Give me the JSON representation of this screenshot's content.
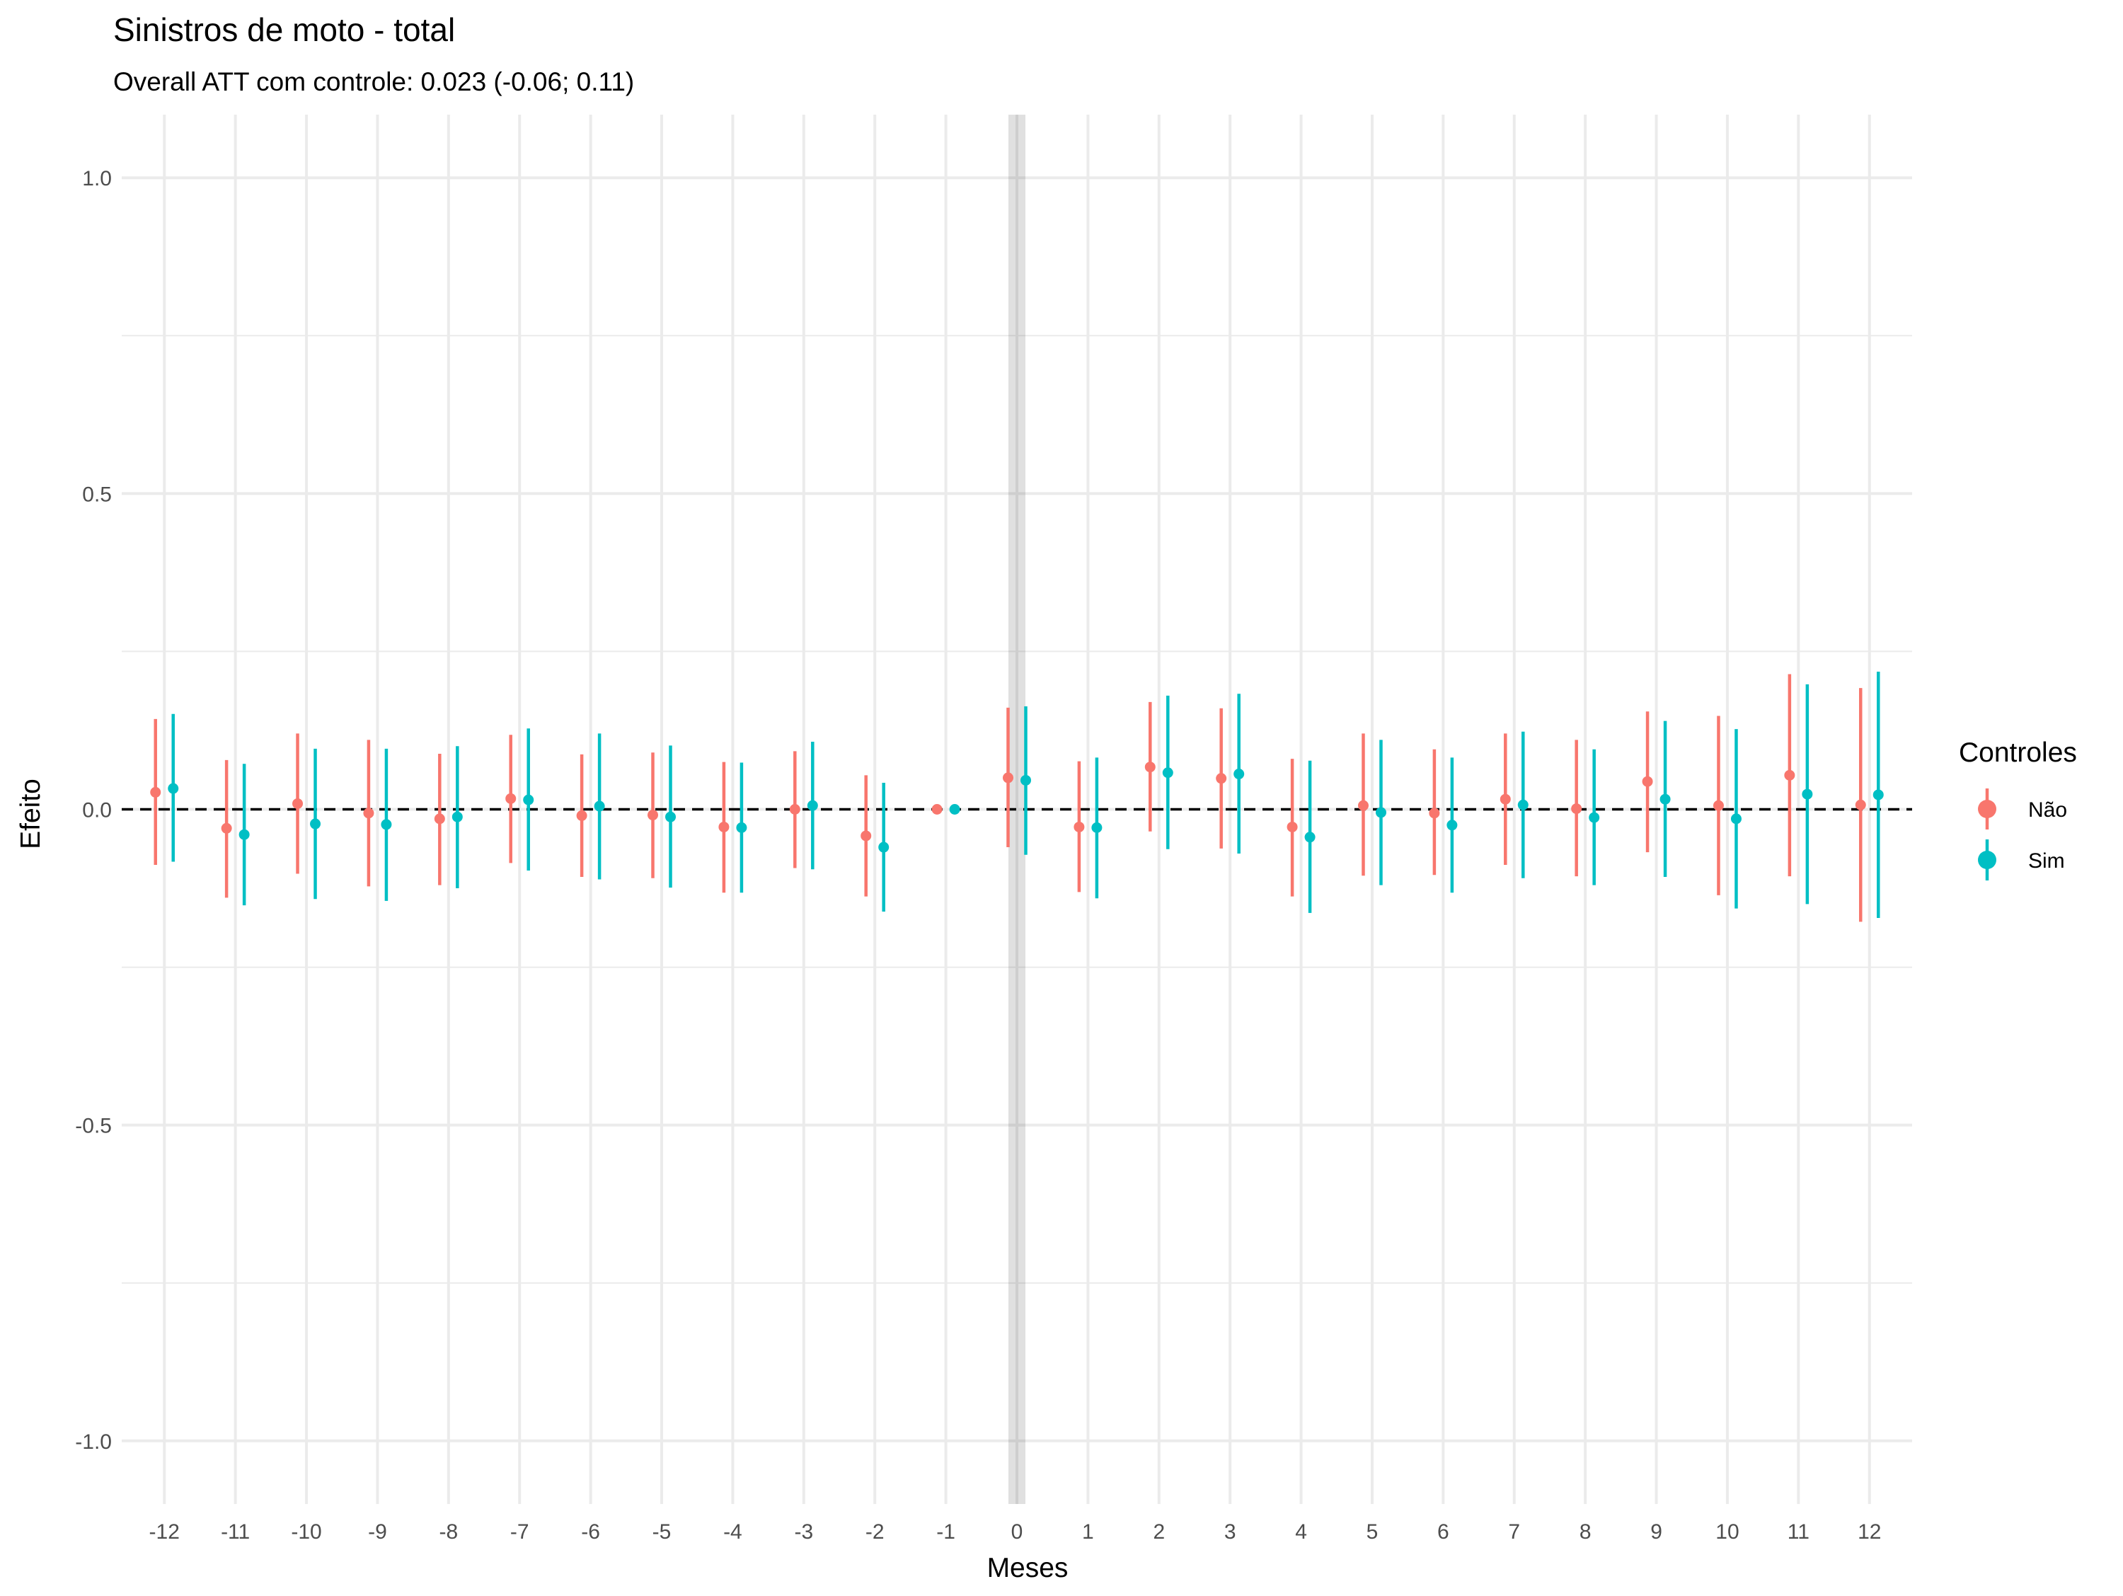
{
  "chart_data": {
    "type": "scatter",
    "title": "Sinistros de moto - total",
    "subtitle": "Overall ATT com controle: 0.023 (-0.06; 0.11)",
    "xlabel": "Meses",
    "ylabel": "Efeito",
    "ylim": [
      -1.1,
      1.1
    ],
    "y_ticks": [
      -1.0,
      -0.5,
      0.0,
      0.5,
      1.0
    ],
    "y_tick_labels": [
      "-1.0",
      "-0.5",
      "0.0",
      "0.5",
      "1.0"
    ],
    "x_ticks": [
      -12,
      -11,
      -10,
      -9,
      -8,
      -7,
      -6,
      -5,
      -4,
      -3,
      -2,
      -1,
      0,
      1,
      2,
      3,
      4,
      5,
      6,
      7,
      8,
      9,
      10,
      11,
      12
    ],
    "x_tick_labels": [
      "-12",
      "-11",
      "-10",
      "-9",
      "-8",
      "-7",
      "-6",
      "-5",
      "-4",
      "-3",
      "-2",
      "-1",
      "0",
      "1",
      "2",
      "3",
      "4",
      "5",
      "6",
      "7",
      "8",
      "9",
      "10",
      "11",
      "12"
    ],
    "reference_line_y": 0,
    "highlight_x": 0,
    "grid": true,
    "legend": {
      "title": "Controles",
      "position": "right",
      "entries": [
        {
          "name": "Não",
          "color": "#F8766D"
        },
        {
          "name": "Sim",
          "color": "#00BFC4"
        }
      ]
    },
    "series": [
      {
        "name": "Não",
        "color": "#F8766D",
        "points": [
          {
            "x": -12,
            "y": 0.027,
            "lo": -0.088,
            "hi": 0.143
          },
          {
            "x": -11,
            "y": -0.03,
            "lo": -0.14,
            "hi": 0.078
          },
          {
            "x": -10,
            "y": 0.009,
            "lo": -0.102,
            "hi": 0.12
          },
          {
            "x": -9,
            "y": -0.006,
            "lo": -0.122,
            "hi": 0.11
          },
          {
            "x": -8,
            "y": -0.015,
            "lo": -0.12,
            "hi": 0.088
          },
          {
            "x": -7,
            "y": 0.017,
            "lo": -0.085,
            "hi": 0.118
          },
          {
            "x": -6,
            "y": -0.01,
            "lo": -0.107,
            "hi": 0.087
          },
          {
            "x": -5,
            "y": -0.009,
            "lo": -0.109,
            "hi": 0.09
          },
          {
            "x": -4,
            "y": -0.028,
            "lo": -0.132,
            "hi": 0.075
          },
          {
            "x": -3,
            "y": 0.0,
            "lo": -0.093,
            "hi": 0.092
          },
          {
            "x": -2,
            "y": -0.042,
            "lo": -0.138,
            "hi": 0.054
          },
          {
            "x": -1,
            "y": 0.0,
            "lo": 0.0,
            "hi": 0.0
          },
          {
            "x": 0,
            "y": 0.05,
            "lo": -0.06,
            "hi": 0.161
          },
          {
            "x": 1,
            "y": -0.028,
            "lo": -0.131,
            "hi": 0.076
          },
          {
            "x": 2,
            "y": 0.067,
            "lo": -0.035,
            "hi": 0.17
          },
          {
            "x": 3,
            "y": 0.049,
            "lo": -0.062,
            "hi": 0.16
          },
          {
            "x": 4,
            "y": -0.028,
            "lo": -0.138,
            "hi": 0.08
          },
          {
            "x": 5,
            "y": 0.006,
            "lo": -0.105,
            "hi": 0.12
          },
          {
            "x": 6,
            "y": -0.006,
            "lo": -0.104,
            "hi": 0.095
          },
          {
            "x": 7,
            "y": 0.016,
            "lo": -0.088,
            "hi": 0.12
          },
          {
            "x": 8,
            "y": 0.001,
            "lo": -0.106,
            "hi": 0.11
          },
          {
            "x": 9,
            "y": 0.044,
            "lo": -0.068,
            "hi": 0.155
          },
          {
            "x": 10,
            "y": 0.006,
            "lo": -0.136,
            "hi": 0.148
          },
          {
            "x": 11,
            "y": 0.054,
            "lo": -0.106,
            "hi": 0.214
          },
          {
            "x": 12,
            "y": 0.007,
            "lo": -0.178,
            "hi": 0.192
          }
        ]
      },
      {
        "name": "Sim",
        "color": "#00BFC4",
        "points": [
          {
            "x": -12,
            "y": 0.033,
            "lo": -0.083,
            "hi": 0.151
          },
          {
            "x": -11,
            "y": -0.04,
            "lo": -0.152,
            "hi": 0.072
          },
          {
            "x": -10,
            "y": -0.023,
            "lo": -0.142,
            "hi": 0.096
          },
          {
            "x": -9,
            "y": -0.024,
            "lo": -0.145,
            "hi": 0.096
          },
          {
            "x": -8,
            "y": -0.012,
            "lo": -0.125,
            "hi": 0.1
          },
          {
            "x": -7,
            "y": 0.015,
            "lo": -0.097,
            "hi": 0.128
          },
          {
            "x": -6,
            "y": 0.005,
            "lo": -0.111,
            "hi": 0.12
          },
          {
            "x": -5,
            "y": -0.012,
            "lo": -0.124,
            "hi": 0.101
          },
          {
            "x": -4,
            "y": -0.029,
            "lo": -0.132,
            "hi": 0.074
          },
          {
            "x": -3,
            "y": 0.006,
            "lo": -0.095,
            "hi": 0.107
          },
          {
            "x": -2,
            "y": -0.06,
            "lo": -0.162,
            "hi": 0.042
          },
          {
            "x": -1,
            "y": 0.0,
            "lo": 0.0,
            "hi": 0.0
          },
          {
            "x": 0,
            "y": 0.046,
            "lo": -0.072,
            "hi": 0.163
          },
          {
            "x": 1,
            "y": -0.029,
            "lo": -0.141,
            "hi": 0.082
          },
          {
            "x": 2,
            "y": 0.058,
            "lo": -0.063,
            "hi": 0.18
          },
          {
            "x": 3,
            "y": 0.056,
            "lo": -0.07,
            "hi": 0.183
          },
          {
            "x": 4,
            "y": -0.044,
            "lo": -0.164,
            "hi": 0.077
          },
          {
            "x": 5,
            "y": -0.005,
            "lo": -0.12,
            "hi": 0.11
          },
          {
            "x": 6,
            "y": -0.025,
            "lo": -0.132,
            "hi": 0.082
          },
          {
            "x": 7,
            "y": 0.007,
            "lo": -0.109,
            "hi": 0.123
          },
          {
            "x": 8,
            "y": -0.013,
            "lo": -0.12,
            "hi": 0.095
          },
          {
            "x": 9,
            "y": 0.016,
            "lo": -0.107,
            "hi": 0.14
          },
          {
            "x": 10,
            "y": -0.015,
            "lo": -0.157,
            "hi": 0.127
          },
          {
            "x": 11,
            "y": 0.024,
            "lo": -0.15,
            "hi": 0.198
          },
          {
            "x": 12,
            "y": 0.023,
            "lo": -0.172,
            "hi": 0.218
          }
        ]
      }
    ]
  }
}
